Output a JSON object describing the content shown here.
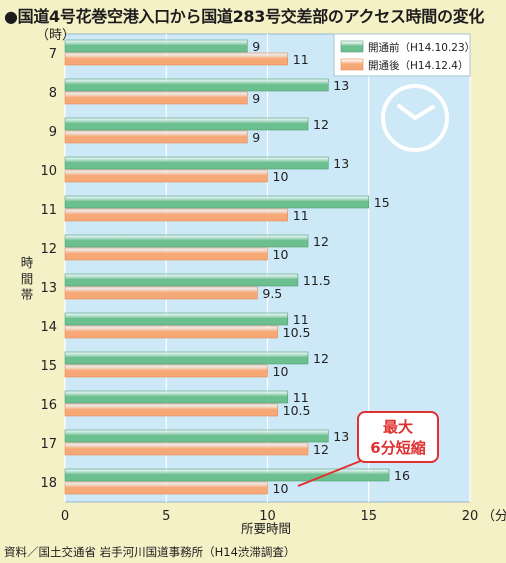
{
  "title": "●国道4号花巻空港入口から国道283号交差部のアクセス時間の変化",
  "source": "資料／国土交通省 岩手河川国道事務所（H14渋滞調査）",
  "chart_data": {
    "type": "bar",
    "orientation": "horizontal",
    "title": "●国道4号花巻空港入口から国道283号交差部のアクセス時間の変化",
    "categories": [
      "7",
      "8",
      "9",
      "10",
      "11",
      "12",
      "13",
      "14",
      "15",
      "16",
      "17",
      "18"
    ],
    "series": [
      {
        "name": "開通前（H14.10.23）",
        "color": "#6cbf8e",
        "values": [
          9,
          13,
          12,
          13,
          15,
          12,
          11.5,
          11,
          12,
          11,
          13,
          16
        ],
        "labels": [
          "9",
          "13",
          "12",
          "13",
          "15",
          "12",
          "11.5",
          "11",
          "12",
          "11",
          "13",
          "16"
        ]
      },
      {
        "name": "開通後（H14.12.4）",
        "color": "#f7a877",
        "values": [
          11,
          9,
          9,
          10,
          11,
          10,
          9.5,
          10.5,
          10,
          10.5,
          12,
          10
        ],
        "labels": [
          "11",
          "9",
          "9",
          "10",
          "11",
          "10",
          "9.5",
          "10.5",
          "10",
          "10.5",
          "12",
          "10"
        ]
      }
    ],
    "xlabel": "所要時間",
    "ylabel": "時間帯",
    "category_unit": "（時）",
    "value_unit": "（分）",
    "xlim": [
      0,
      20
    ],
    "xticks": [
      "0",
      "5",
      "10",
      "15",
      "20"
    ],
    "legend_position": "top-right",
    "grid": true,
    "background": "#cde8f7",
    "annotation": {
      "line1": "最大",
      "line2": "6分短縮",
      "color": "#e03030",
      "category": "18"
    },
    "decoration": "clock-icon"
  }
}
